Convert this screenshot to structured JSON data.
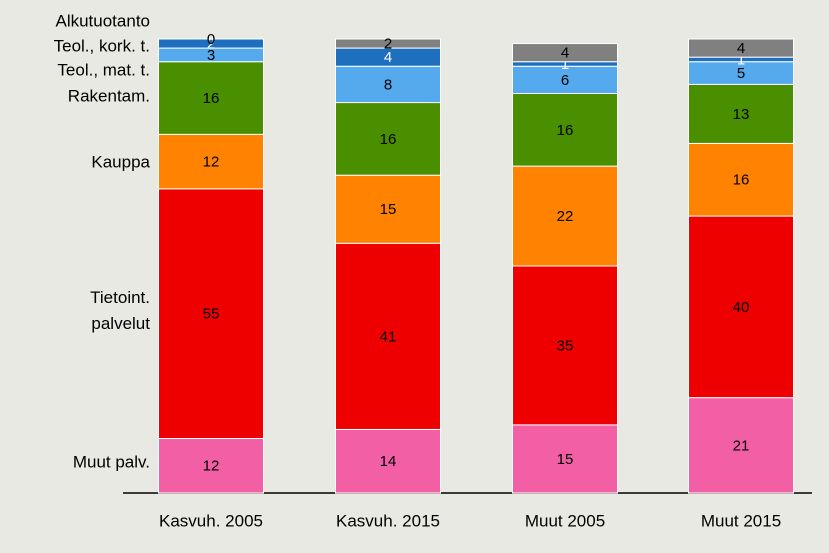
{
  "chart_data": {
    "type": "stacked_bar",
    "categories": [
      "Kasvuh. 2005",
      "Kasvuh. 2015",
      "Muut 2005",
      "Muut 2015"
    ],
    "ylim": [
      0,
      100
    ],
    "series": [
      {
        "name": "Muut palv.",
        "color": "#f25fa5",
        "values": [
          12,
          14,
          15,
          21
        ]
      },
      {
        "name": "Tietoint. palvelut",
        "color": "#ee0000",
        "values": [
          55,
          41,
          35,
          40
        ]
      },
      {
        "name": "Kauppa",
        "color": "#ff8200",
        "values": [
          12,
          15,
          22,
          16
        ]
      },
      {
        "name": "Rakentam.",
        "color": "#4a8f00",
        "values": [
          16,
          16,
          16,
          13
        ]
      },
      {
        "name": "Teol., mat.  t.",
        "color": "#55aaee",
        "values": [
          3,
          8,
          6,
          5
        ]
      },
      {
        "name": "Teol., kork. t.",
        "color": "#1f6fbf",
        "values": [
          2,
          4,
          1,
          1
        ]
      },
      {
        "name": "Alkutuotanto",
        "color": "#808080",
        "values": [
          0,
          2,
          4,
          4
        ]
      }
    ]
  }
}
